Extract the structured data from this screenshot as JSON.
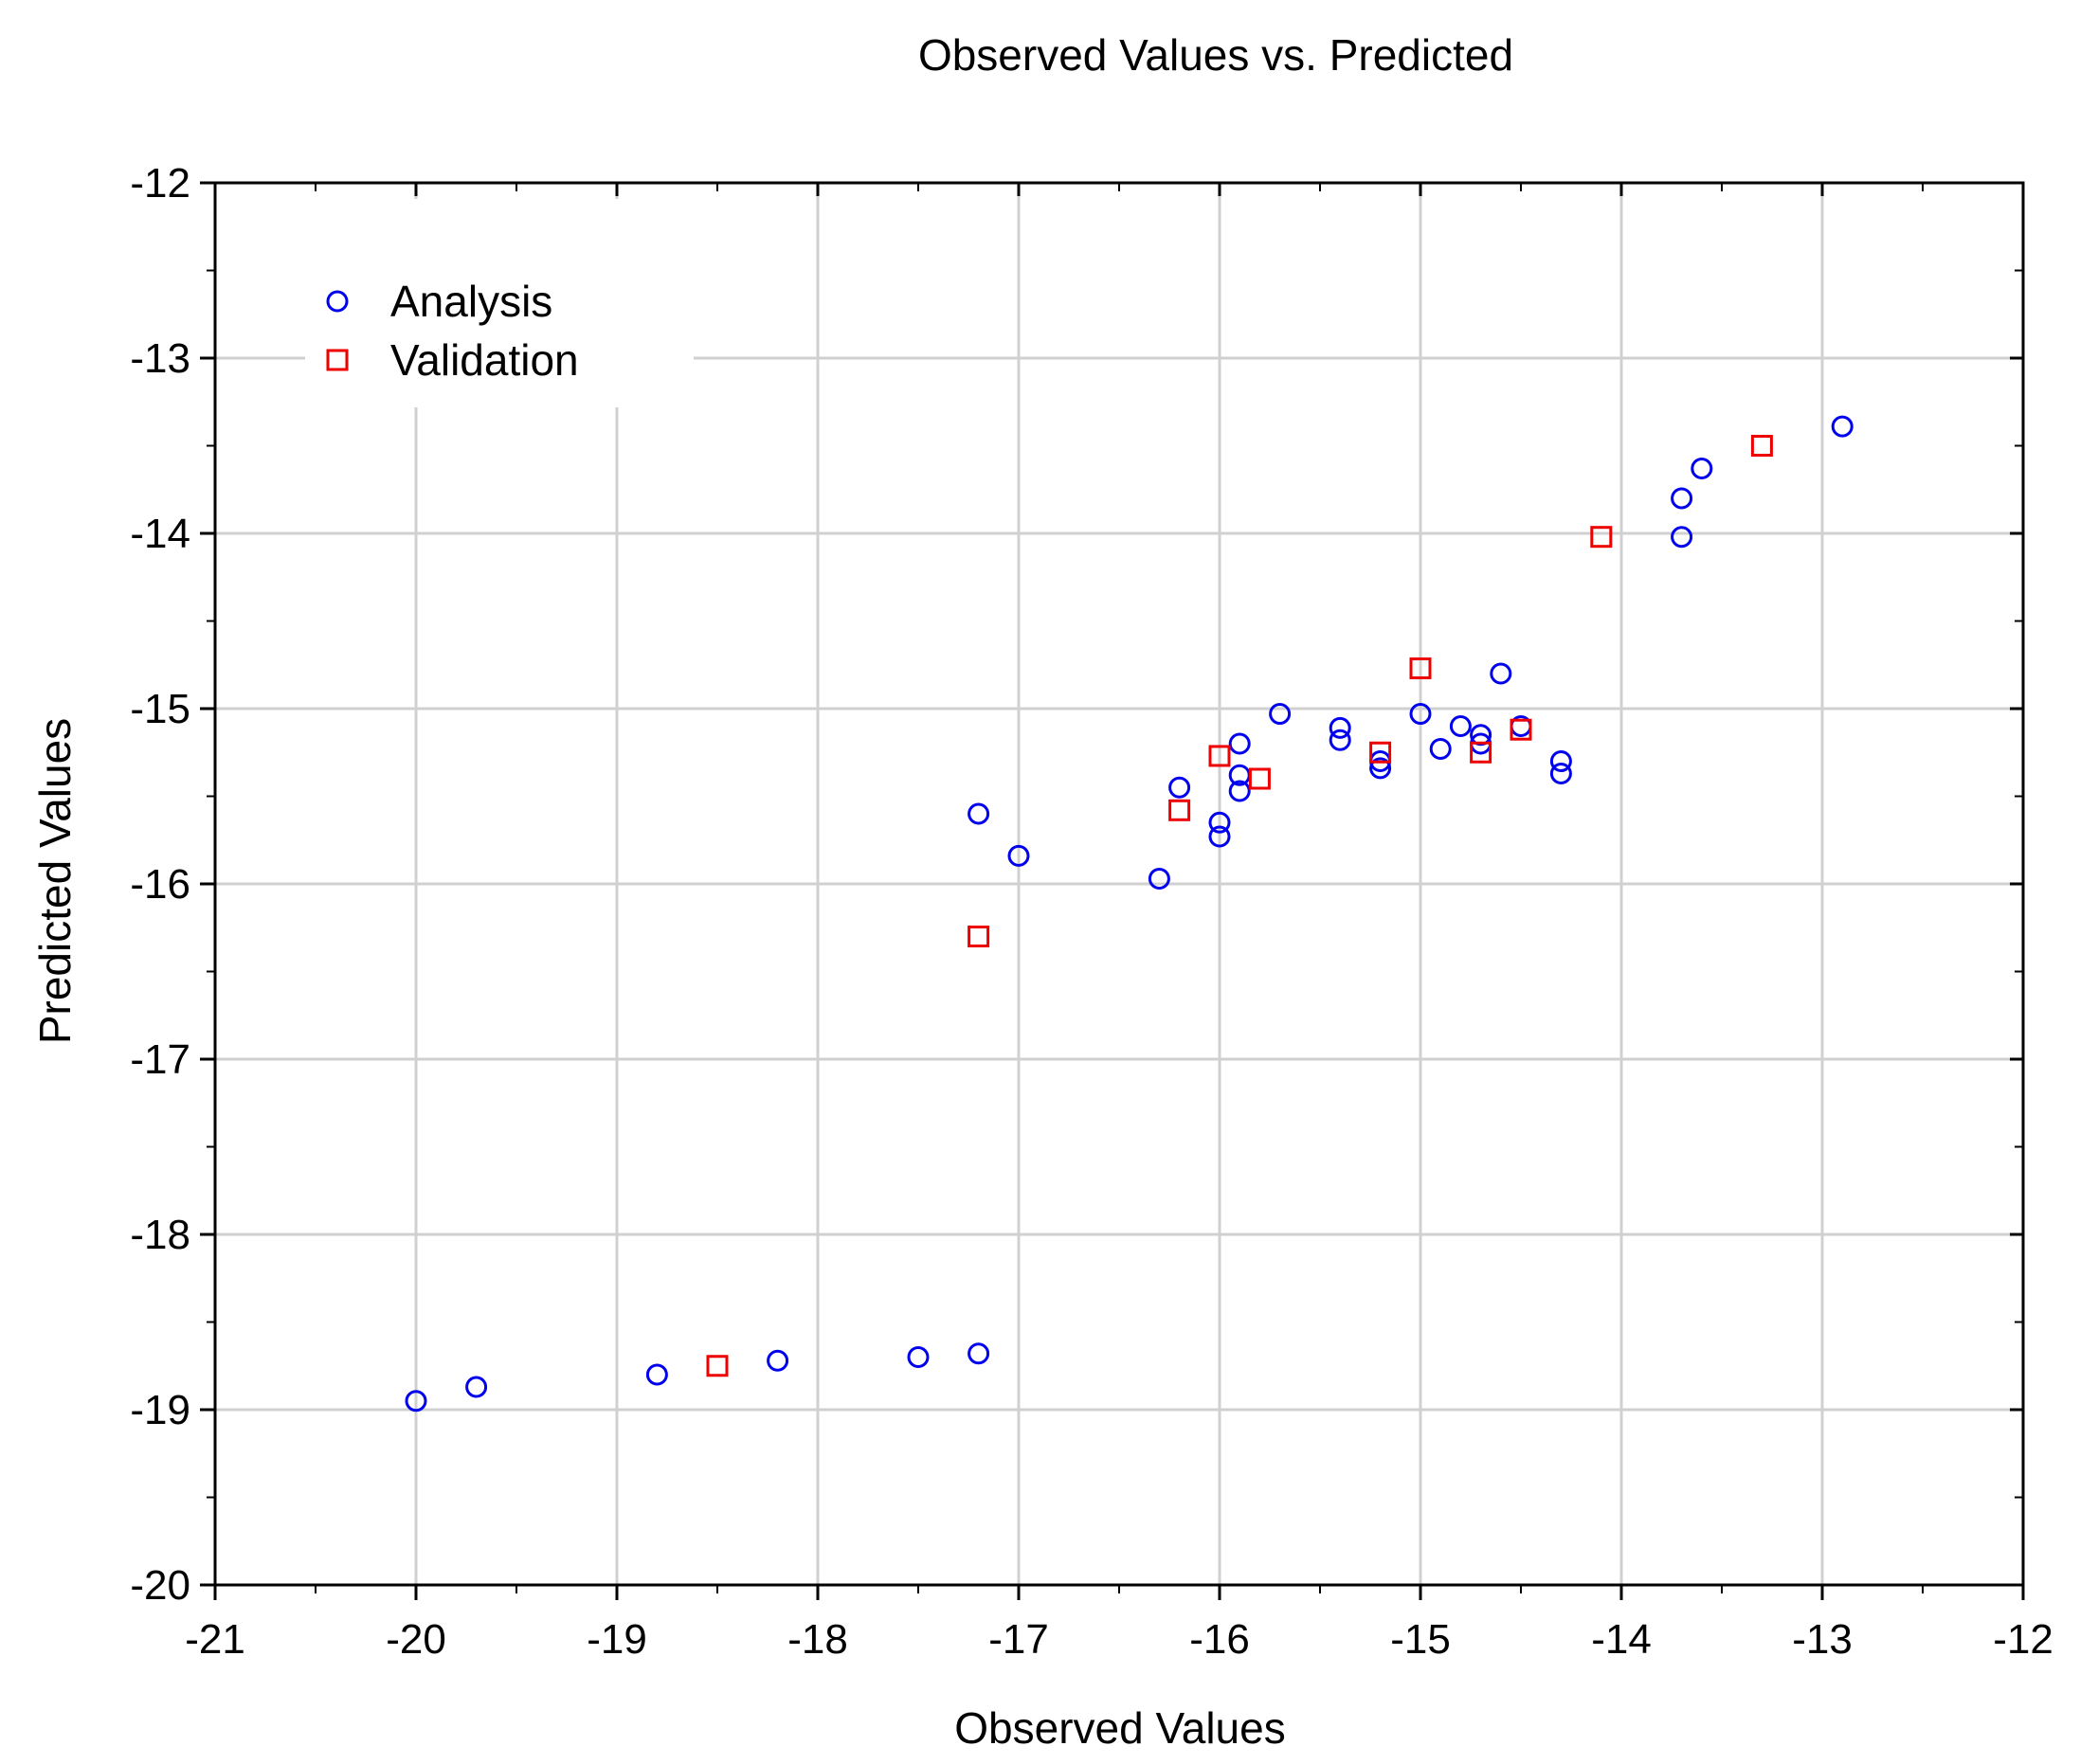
{
  "chart_data": {
    "type": "scatter",
    "title": "Observed Values vs. Predicted",
    "xlabel": "Observed Values",
    "ylabel": "Predicted Values",
    "xlim": [
      -21,
      -12
    ],
    "ylim": [
      -20,
      -12
    ],
    "xticks": [
      -21,
      -20,
      -19,
      -18,
      -17,
      -16,
      -15,
      -14,
      -13,
      -12
    ],
    "yticks": [
      -12,
      -13,
      -14,
      -15,
      -16,
      -17,
      -18,
      -19,
      -20
    ],
    "grid": true,
    "legend_position": "top-left",
    "series": [
      {
        "name": "Analysis",
        "marker": "circle",
        "color": "#0000ee",
        "points": [
          [
            -20.0,
            -18.95
          ],
          [
            -19.7,
            -18.87
          ],
          [
            -18.8,
            -18.8
          ],
          [
            -18.2,
            -18.72
          ],
          [
            -17.5,
            -18.7
          ],
          [
            -17.2,
            -18.68
          ],
          [
            -17.2,
            -15.6
          ],
          [
            -17.0,
            -15.84
          ],
          [
            -16.3,
            -15.97
          ],
          [
            -16.2,
            -15.45
          ],
          [
            -16.0,
            -15.65
          ],
          [
            -16.0,
            -15.73
          ],
          [
            -15.9,
            -15.2
          ],
          [
            -15.9,
            -15.38
          ],
          [
            -15.9,
            -15.47
          ],
          [
            -15.7,
            -15.03
          ],
          [
            -15.4,
            -15.11
          ],
          [
            -15.4,
            -15.18
          ],
          [
            -15.2,
            -15.3
          ],
          [
            -15.2,
            -15.34
          ],
          [
            -15.0,
            -15.03
          ],
          [
            -14.9,
            -15.23
          ],
          [
            -14.8,
            -15.1
          ],
          [
            -14.7,
            -15.15
          ],
          [
            -14.7,
            -15.2
          ],
          [
            -14.6,
            -14.8
          ],
          [
            -14.5,
            -15.1
          ],
          [
            -14.3,
            -15.3
          ],
          [
            -14.3,
            -15.37
          ],
          [
            -13.7,
            -13.8
          ],
          [
            -13.7,
            -14.02
          ],
          [
            -13.6,
            -13.63
          ],
          [
            -12.9,
            -13.39
          ]
        ]
      },
      {
        "name": "Validation",
        "marker": "square",
        "color": "#ee0000",
        "points": [
          [
            -18.5,
            -18.75
          ],
          [
            -17.2,
            -16.3
          ],
          [
            -16.2,
            -15.58
          ],
          [
            -16.0,
            -15.27
          ],
          [
            -15.8,
            -15.4
          ],
          [
            -15.2,
            -15.25
          ],
          [
            -15.0,
            -14.77
          ],
          [
            -14.7,
            -15.25
          ],
          [
            -14.5,
            -15.12
          ],
          [
            -14.1,
            -14.02
          ],
          [
            -13.3,
            -13.5
          ]
        ]
      }
    ]
  }
}
